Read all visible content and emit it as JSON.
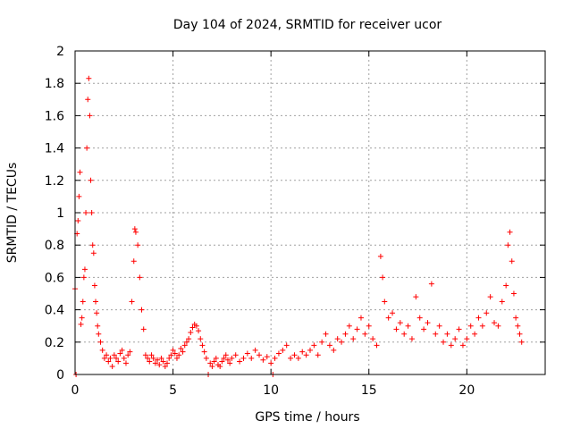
{
  "chart_data": {
    "type": "scatter",
    "title": "Day 104 of 2024, SRMTID for receiver ucor",
    "xlabel": "GPS time / hours",
    "ylabel": "SRMTID / TECUs",
    "xlim": [
      0,
      24
    ],
    "ylim": [
      0,
      2
    ],
    "x_ticks": [
      0,
      5,
      10,
      15,
      20
    ],
    "x_tick_labels": [
      "0",
      "5",
      "10",
      "15",
      "20"
    ],
    "y_ticks": [
      0,
      0.2,
      0.4,
      0.6,
      0.8,
      1,
      1.2,
      1.4,
      1.6,
      1.8,
      2
    ],
    "y_tick_labels": [
      "0",
      "0.2",
      "0.4",
      "0.6",
      "0.8",
      "1",
      "1.2",
      "1.4",
      "1.6",
      "1.8",
      "2"
    ],
    "grid": true,
    "marker": "+",
    "marker_color": "#ff0000",
    "series": [
      {
        "name": "SRMTID",
        "points": [
          [
            0.0,
            0.53
          ],
          [
            0.05,
            0.0
          ],
          [
            0.1,
            0.87
          ],
          [
            0.15,
            0.95
          ],
          [
            0.2,
            1.1
          ],
          [
            0.25,
            1.25
          ],
          [
            0.3,
            0.31
          ],
          [
            0.35,
            0.35
          ],
          [
            0.4,
            0.45
          ],
          [
            0.45,
            0.6
          ],
          [
            0.5,
            0.65
          ],
          [
            0.55,
            1.0
          ],
          [
            0.6,
            1.4
          ],
          [
            0.65,
            1.7
          ],
          [
            0.7,
            1.83
          ],
          [
            0.75,
            1.6
          ],
          [
            0.8,
            1.2
          ],
          [
            0.85,
            1.0
          ],
          [
            0.9,
            0.8
          ],
          [
            0.95,
            0.75
          ],
          [
            1.0,
            0.55
          ],
          [
            1.05,
            0.45
          ],
          [
            1.1,
            0.38
          ],
          [
            1.15,
            0.3
          ],
          [
            1.2,
            0.25
          ],
          [
            1.3,
            0.2
          ],
          [
            1.4,
            0.15
          ],
          [
            1.5,
            0.1
          ],
          [
            1.6,
            0.12
          ],
          [
            1.7,
            0.08
          ],
          [
            1.8,
            0.1
          ],
          [
            1.9,
            0.05
          ],
          [
            2.0,
            0.12
          ],
          [
            2.1,
            0.1
          ],
          [
            2.2,
            0.08
          ],
          [
            2.3,
            0.13
          ],
          [
            2.4,
            0.15
          ],
          [
            2.5,
            0.1
          ],
          [
            2.6,
            0.07
          ],
          [
            2.7,
            0.12
          ],
          [
            2.8,
            0.14
          ],
          [
            2.9,
            0.45
          ],
          [
            3.0,
            0.7
          ],
          [
            3.05,
            0.9
          ],
          [
            3.1,
            0.88
          ],
          [
            3.2,
            0.8
          ],
          [
            3.3,
            0.6
          ],
          [
            3.4,
            0.4
          ],
          [
            3.5,
            0.28
          ],
          [
            3.6,
            0.12
          ],
          [
            3.7,
            0.1
          ],
          [
            3.8,
            0.08
          ],
          [
            3.9,
            0.12
          ],
          [
            4.0,
            0.1
          ],
          [
            4.1,
            0.07
          ],
          [
            4.2,
            0.09
          ],
          [
            4.3,
            0.06
          ],
          [
            4.4,
            0.1
          ],
          [
            4.5,
            0.08
          ],
          [
            4.6,
            0.05
          ],
          [
            4.7,
            0.07
          ],
          [
            4.8,
            0.1
          ],
          [
            4.9,
            0.12
          ],
          [
            5.0,
            0.15
          ],
          [
            5.1,
            0.13
          ],
          [
            5.2,
            0.1
          ],
          [
            5.3,
            0.12
          ],
          [
            5.4,
            0.16
          ],
          [
            5.5,
            0.14
          ],
          [
            5.6,
            0.18
          ],
          [
            5.7,
            0.2
          ],
          [
            5.8,
            0.22
          ],
          [
            5.9,
            0.26
          ],
          [
            6.0,
            0.29
          ],
          [
            6.1,
            0.31
          ],
          [
            6.2,
            0.3
          ],
          [
            6.3,
            0.27
          ],
          [
            6.4,
            0.22
          ],
          [
            6.5,
            0.18
          ],
          [
            6.6,
            0.14
          ],
          [
            6.7,
            0.1
          ],
          [
            6.8,
            0.0
          ],
          [
            6.9,
            0.07
          ],
          [
            7.0,
            0.05
          ],
          [
            7.1,
            0.08
          ],
          [
            7.2,
            0.1
          ],
          [
            7.3,
            0.06
          ],
          [
            7.4,
            0.05
          ],
          [
            7.5,
            0.08
          ],
          [
            7.6,
            0.1
          ],
          [
            7.7,
            0.12
          ],
          [
            7.8,
            0.09
          ],
          [
            7.9,
            0.07
          ],
          [
            8.0,
            0.1
          ],
          [
            8.2,
            0.12
          ],
          [
            8.4,
            0.08
          ],
          [
            8.6,
            0.1
          ],
          [
            8.8,
            0.13
          ],
          [
            9.0,
            0.1
          ],
          [
            9.2,
            0.15
          ],
          [
            9.4,
            0.12
          ],
          [
            9.6,
            0.09
          ],
          [
            9.8,
            0.11
          ],
          [
            10.0,
            0.07
          ],
          [
            10.1,
            0.0
          ],
          [
            10.2,
            0.1
          ],
          [
            10.4,
            0.13
          ],
          [
            10.6,
            0.15
          ],
          [
            10.8,
            0.18
          ],
          [
            11.0,
            0.1
          ],
          [
            11.2,
            0.12
          ],
          [
            11.4,
            0.1
          ],
          [
            11.6,
            0.14
          ],
          [
            11.8,
            0.12
          ],
          [
            12.0,
            0.15
          ],
          [
            12.2,
            0.18
          ],
          [
            12.4,
            0.12
          ],
          [
            12.6,
            0.2
          ],
          [
            12.8,
            0.25
          ],
          [
            13.0,
            0.18
          ],
          [
            13.2,
            0.15
          ],
          [
            13.4,
            0.22
          ],
          [
            13.6,
            0.2
          ],
          [
            13.8,
            0.25
          ],
          [
            14.0,
            0.3
          ],
          [
            14.2,
            0.22
          ],
          [
            14.4,
            0.28
          ],
          [
            14.6,
            0.35
          ],
          [
            14.8,
            0.25
          ],
          [
            15.0,
            0.3
          ],
          [
            15.2,
            0.22
          ],
          [
            15.4,
            0.18
          ],
          [
            15.6,
            0.73
          ],
          [
            15.7,
            0.6
          ],
          [
            15.8,
            0.45
          ],
          [
            16.0,
            0.35
          ],
          [
            16.2,
            0.38
          ],
          [
            16.4,
            0.28
          ],
          [
            16.6,
            0.32
          ],
          [
            16.8,
            0.25
          ],
          [
            17.0,
            0.3
          ],
          [
            17.2,
            0.22
          ],
          [
            17.4,
            0.48
          ],
          [
            17.6,
            0.35
          ],
          [
            17.8,
            0.28
          ],
          [
            18.0,
            0.32
          ],
          [
            18.2,
            0.56
          ],
          [
            18.4,
            0.25
          ],
          [
            18.6,
            0.3
          ],
          [
            18.8,
            0.2
          ],
          [
            19.0,
            0.25
          ],
          [
            19.2,
            0.18
          ],
          [
            19.4,
            0.22
          ],
          [
            19.6,
            0.28
          ],
          [
            19.8,
            0.18
          ],
          [
            20.0,
            0.22
          ],
          [
            20.2,
            0.3
          ],
          [
            20.4,
            0.25
          ],
          [
            20.6,
            0.35
          ],
          [
            20.8,
            0.3
          ],
          [
            21.0,
            0.38
          ],
          [
            21.2,
            0.48
          ],
          [
            21.4,
            0.32
          ],
          [
            21.6,
            0.3
          ],
          [
            21.8,
            0.45
          ],
          [
            22.0,
            0.55
          ],
          [
            22.1,
            0.8
          ],
          [
            22.2,
            0.88
          ],
          [
            22.3,
            0.7
          ],
          [
            22.4,
            0.5
          ],
          [
            22.5,
            0.35
          ],
          [
            22.6,
            0.3
          ],
          [
            22.7,
            0.25
          ],
          [
            22.8,
            0.2
          ]
        ]
      }
    ]
  }
}
